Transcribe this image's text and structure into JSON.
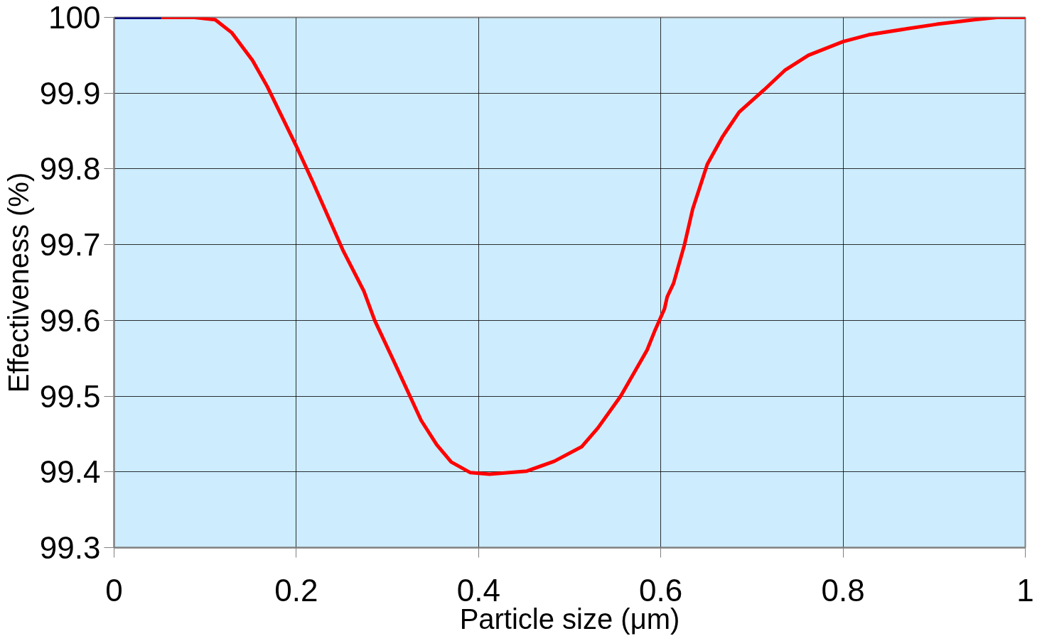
{
  "chart_data": {
    "type": "line",
    "xlabel": "Particle size (μm)",
    "ylabel": "Effectiveness (%)",
    "xlim": [
      0,
      1
    ],
    "ylim": [
      99.3,
      100
    ],
    "xticks": [
      0,
      0.2,
      0.4,
      0.6,
      0.8,
      1
    ],
    "yticks": [
      99.3,
      99.4,
      99.5,
      99.6,
      99.7,
      99.8,
      99.9,
      100
    ],
    "grid": true,
    "marker": "none",
    "line_style": "solid",
    "series": [
      {
        "color": "#000080",
        "x": [
          0,
          0.052
        ],
        "values": [
          100,
          100
        ]
      },
      {
        "color": "#ff0000",
        "x": [
          0.052,
          0.068,
          0.088,
          0.111,
          0.129,
          0.152,
          0.168,
          0.2,
          0.218,
          0.251,
          0.274,
          0.286,
          0.309,
          0.337,
          0.354,
          0.37,
          0.391,
          0.412,
          0.453,
          0.483,
          0.513,
          0.531,
          0.556,
          0.577,
          0.585,
          0.593,
          0.604,
          0.607,
          0.614,
          0.626,
          0.635,
          0.651,
          0.668,
          0.686,
          0.713,
          0.736,
          0.762,
          0.8,
          0.828,
          0.87,
          0.903,
          0.923,
          0.944,
          0.969,
          1.0
        ],
        "values": [
          100,
          100,
          100,
          99.997,
          99.98,
          99.943,
          99.909,
          99.83,
          99.783,
          99.693,
          99.639,
          99.6,
          99.541,
          99.468,
          99.436,
          99.413,
          99.399,
          99.397,
          99.401,
          99.414,
          99.433,
          99.458,
          99.5,
          99.544,
          99.561,
          99.585,
          99.615,
          99.631,
          99.649,
          99.7,
          99.747,
          99.806,
          99.843,
          99.875,
          99.904,
          99.93,
          99.95,
          99.968,
          99.977,
          99.985,
          99.991,
          99.994,
          99.997,
          100,
          100
        ]
      }
    ]
  }
}
